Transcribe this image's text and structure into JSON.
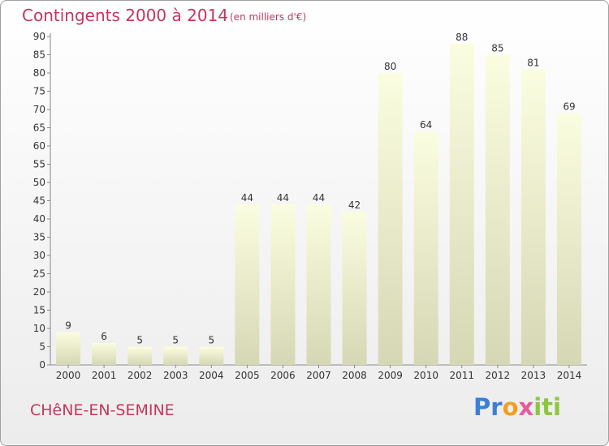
{
  "header": {
    "title": "Contingents 2000 à 2014",
    "subtitle": "(en milliers d'€)"
  },
  "footer": {
    "place": "CHêNE-EN-SEMINE",
    "logo_parts": [
      "Pr",
      "o",
      "x",
      "iti"
    ]
  },
  "colors": {
    "accent": "#c4365e",
    "bar_top": "#fbfde0",
    "bar_bottom": "#d6d7b4"
  },
  "chart_data": {
    "type": "bar",
    "title": "Contingents 2000 à 2014",
    "subtitle": "(en milliers d'€)",
    "xlabel": "",
    "ylabel": "",
    "categories": [
      "2000",
      "2001",
      "2002",
      "2003",
      "2004",
      "2005",
      "2006",
      "2007",
      "2008",
      "2009",
      "2010",
      "2011",
      "2012",
      "2013",
      "2014"
    ],
    "values": [
      9,
      6,
      5,
      5,
      5,
      44,
      44,
      44,
      42,
      80,
      64,
      88,
      85,
      81,
      69
    ],
    "ylim": [
      0,
      90
    ],
    "yticks": [
      0,
      5,
      10,
      15,
      20,
      25,
      30,
      35,
      40,
      45,
      50,
      55,
      60,
      65,
      70,
      75,
      80,
      85,
      90
    ],
    "grid": false,
    "legend": "none"
  }
}
